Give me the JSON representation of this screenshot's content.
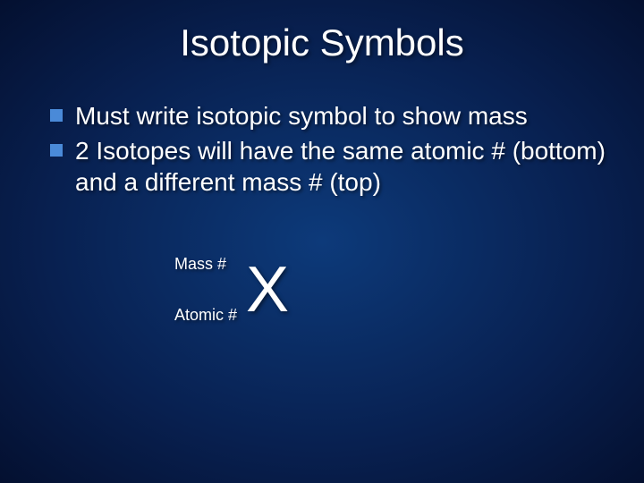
{
  "title": "Isotopic Symbols",
  "bullets": [
    "Must write isotopic symbol to show mass",
    "2 Isotopes will have the same atomic # (bottom) and a different mass # (top)"
  ],
  "symbol": {
    "massLabel": "Mass #",
    "atomicLabel": "Atomic #",
    "element": "X"
  },
  "colors": {
    "background_center": "#0d3a7a",
    "background_edge": "#041030",
    "bullet_marker": "#4a8ad8",
    "text": "#ffffff"
  },
  "fonts": {
    "title_size": 42,
    "bullet_size": 28,
    "label_size": 18,
    "symbol_size": 72
  }
}
